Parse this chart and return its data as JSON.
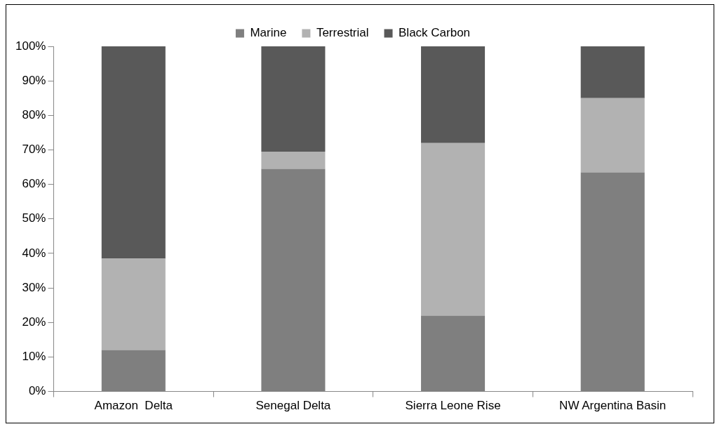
{
  "chart_data": {
    "type": "bar",
    "stacked": true,
    "categories": [
      "Amazon  Delta",
      "Senegal Delta",
      "Sierra Leone Rise",
      "NW Argentina Basin"
    ],
    "series": [
      {
        "name": "Marine",
        "color": "#7f7f7f",
        "values": [
          12,
          64.5,
          22,
          63.5
        ]
      },
      {
        "name": "Terrestrial",
        "color": "#b2b2b2",
        "values": [
          26.5,
          5,
          50,
          21.5
        ]
      },
      {
        "name": "Black Carbon",
        "color": "#595959",
        "values": [
          61.5,
          30.5,
          28,
          15
        ]
      }
    ],
    "ylim": [
      0,
      100
    ],
    "yticks": [
      {
        "value": 0,
        "label": "0%"
      },
      {
        "value": 10,
        "label": "10%"
      },
      {
        "value": 20,
        "label": "20%"
      },
      {
        "value": 30,
        "label": "30%"
      },
      {
        "value": 40,
        "label": "40%"
      },
      {
        "value": 50,
        "label": "50%"
      },
      {
        "value": 60,
        "label": "60%"
      },
      {
        "value": 70,
        "label": "70%"
      },
      {
        "value": 80,
        "label": "80%"
      },
      {
        "value": 90,
        "label": "90%"
      },
      {
        "value": 100,
        "label": "100%"
      }
    ],
    "legend": "top",
    "grid": false
  }
}
